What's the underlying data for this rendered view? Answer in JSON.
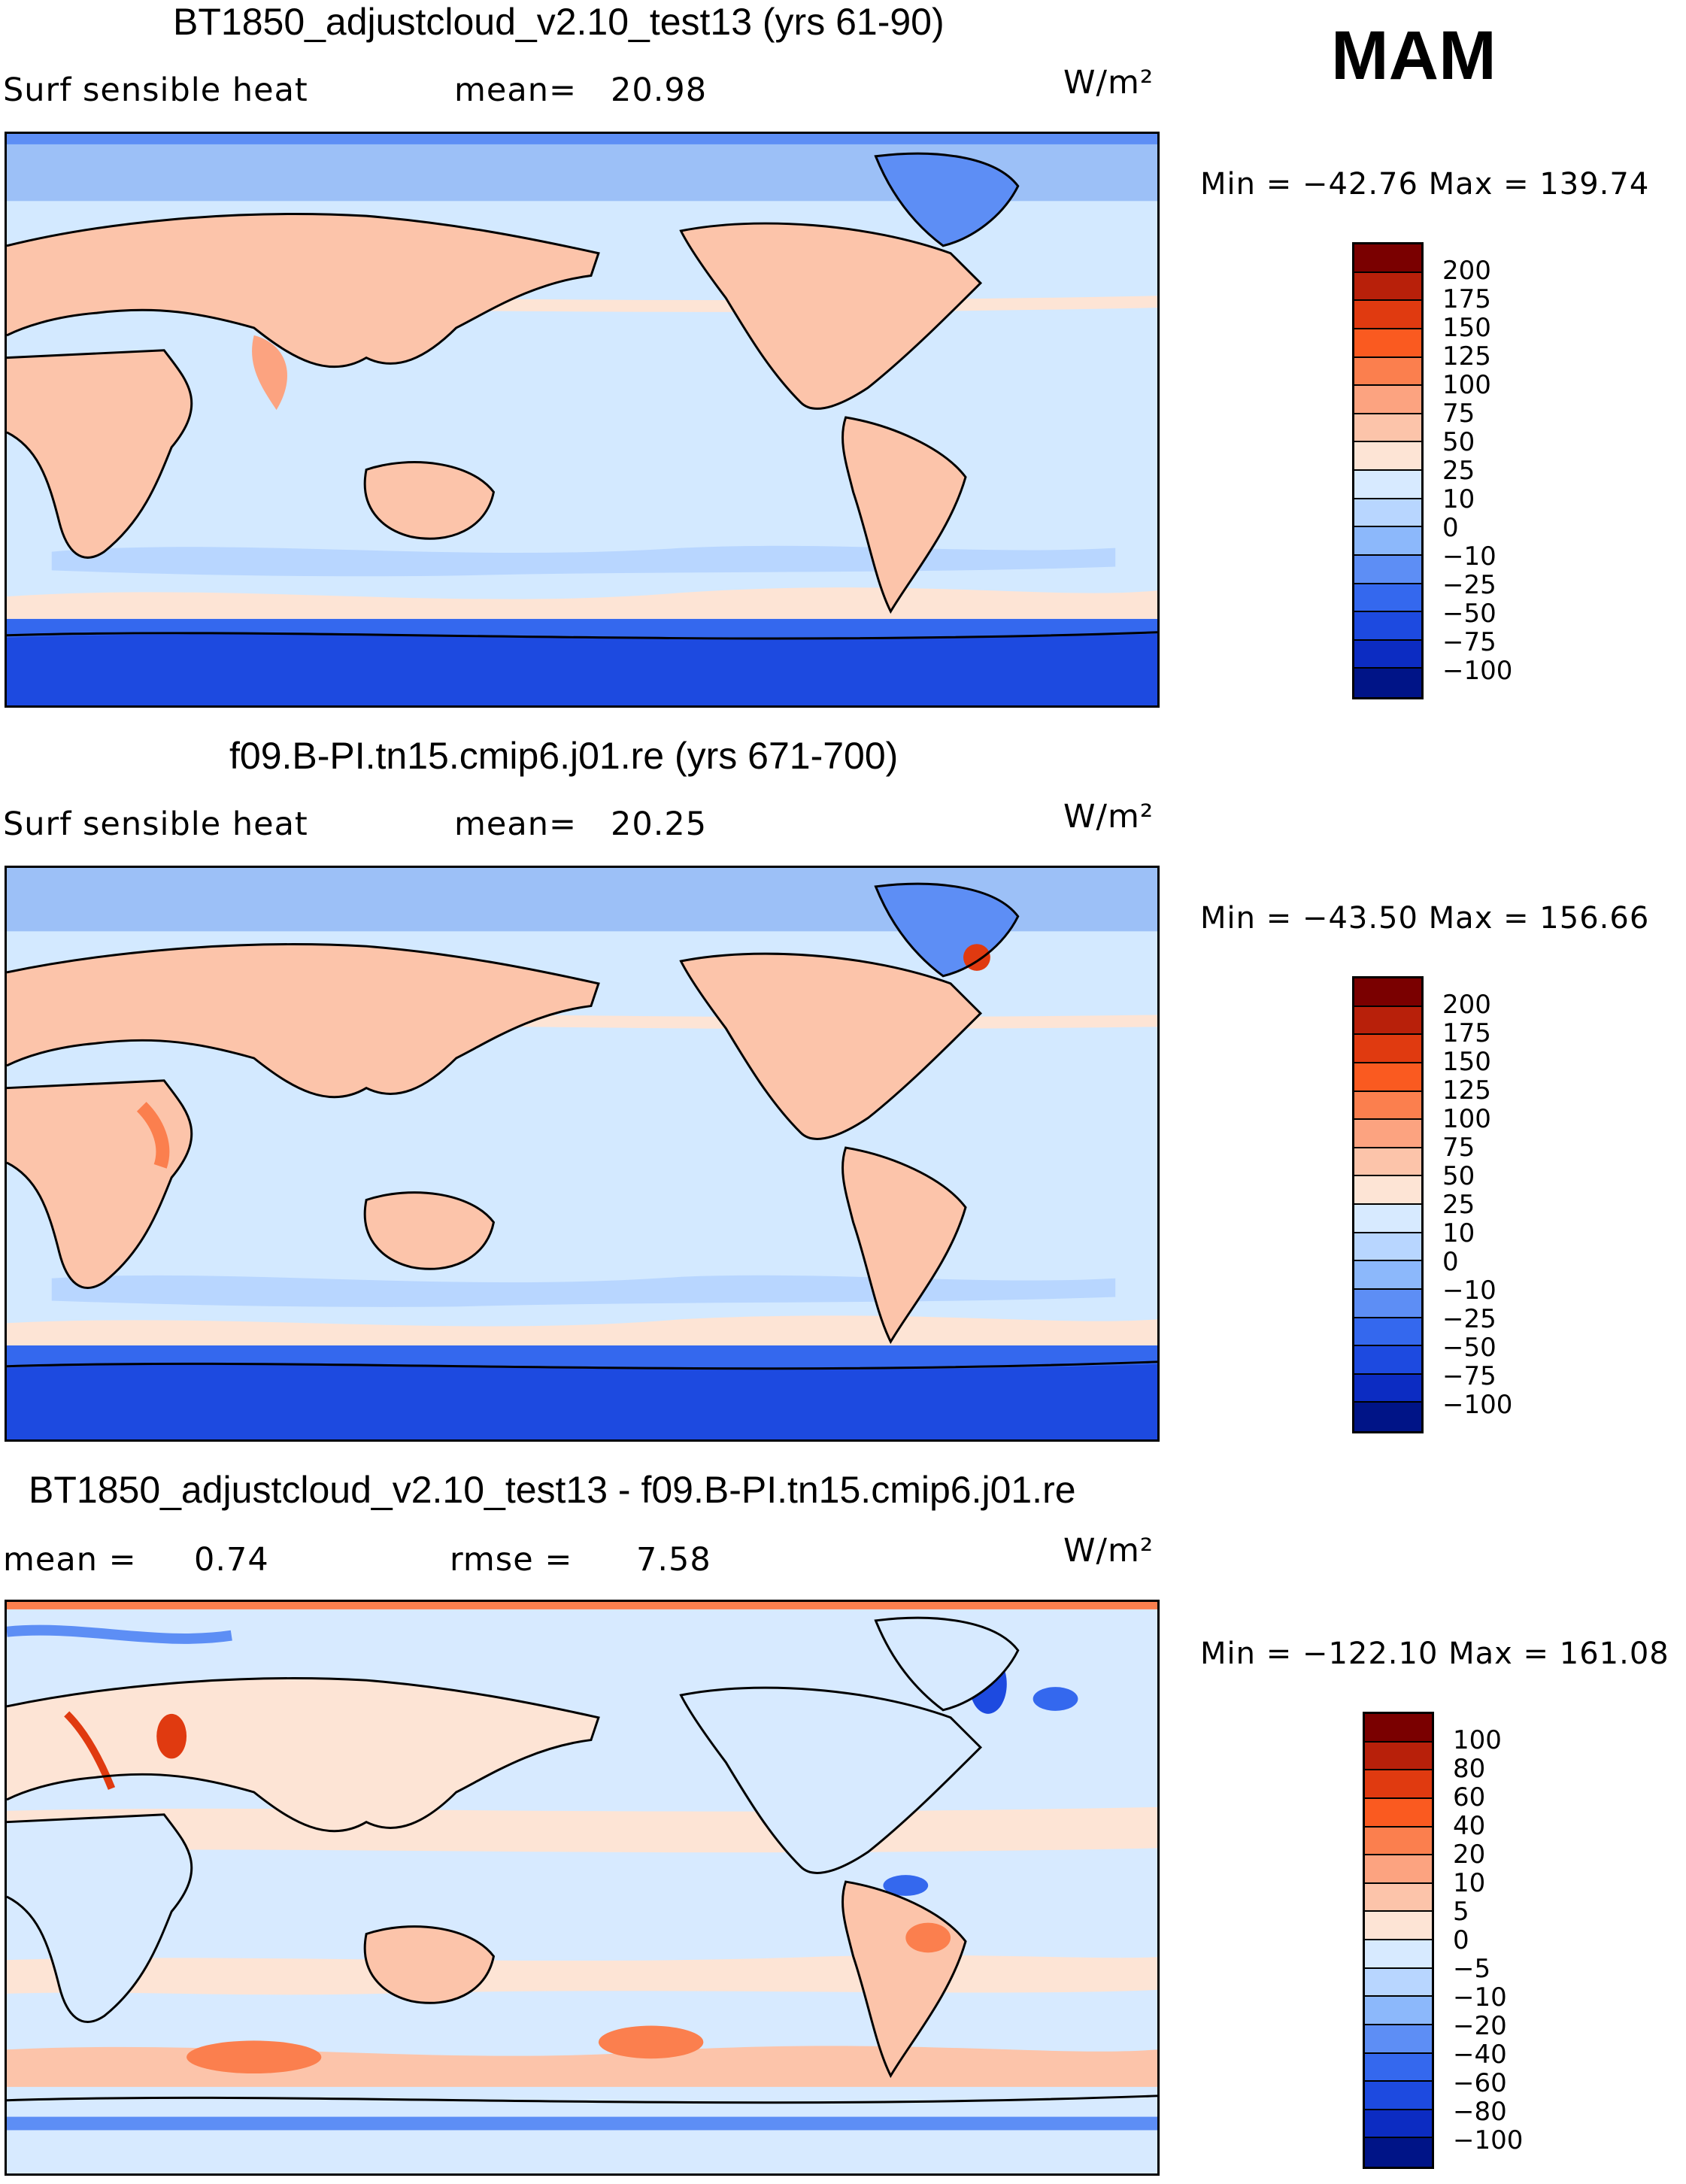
{
  "season": "MAM",
  "panels": [
    {
      "title": "BT1850_adjustcloud_v2.10_test13 (yrs 61-90)",
      "left_label": "Surf sensible heat",
      "mid_label": "mean=",
      "mid_value": "20.98",
      "units": "W/m²",
      "minmax": "Min = −42.76 Max = 139.74",
      "colorbar_labels": [
        "200",
        "175",
        "150",
        "125",
        "100",
        "75",
        "50",
        "25",
        "10",
        "0",
        "−10",
        "−25",
        "−50",
        "−75",
        "−100"
      ],
      "colorbar_colors": [
        "#7a0000",
        "#b8200a",
        "#e03a10",
        "#fa5a20",
        "#fb7f4e",
        "#fca380",
        "#fcc4aa",
        "#fde4d5",
        "#d7eaff",
        "#b8d6ff",
        "#8cb8fb",
        "#5d8ef5",
        "#3468ee",
        "#1d4ae0",
        "#0c2cc2",
        "#001487"
      ]
    },
    {
      "title": "f09.B-PI.tn15.cmip6.j01.re (yrs 671-700)",
      "left_label": "Surf sensible heat",
      "mid_label": "mean=",
      "mid_value": "20.25",
      "units": "W/m²",
      "minmax": "Min = −43.50 Max = 156.66",
      "colorbar_labels": [
        "200",
        "175",
        "150",
        "125",
        "100",
        "75",
        "50",
        "25",
        "10",
        "0",
        "−10",
        "−25",
        "−50",
        "−75",
        "−100"
      ],
      "colorbar_colors": [
        "#7a0000",
        "#b8200a",
        "#e03a10",
        "#fa5a20",
        "#fb7f4e",
        "#fca380",
        "#fcc4aa",
        "#fde4d5",
        "#d7eaff",
        "#b8d6ff",
        "#8cb8fb",
        "#5d8ef5",
        "#3468ee",
        "#1d4ae0",
        "#0c2cc2",
        "#001487"
      ]
    },
    {
      "title": "BT1850_adjustcloud_v2.10_test13 - f09.B-PI.tn15.cmip6.j01.re",
      "left_label": "mean =",
      "left_value": "0.74",
      "mid_label": "rmse =",
      "mid_value": "7.58",
      "units": "W/m²",
      "minmax": "Min = −122.10 Max = 161.08",
      "colorbar_labels": [
        "100",
        "80",
        "60",
        "40",
        "20",
        "10",
        "5",
        "0",
        "−5",
        "−10",
        "−20",
        "−40",
        "−60",
        "−80",
        "−100"
      ],
      "colorbar_colors": [
        "#7a0000",
        "#b8200a",
        "#e03a10",
        "#fa5a20",
        "#fb7f4e",
        "#fca380",
        "#fcc4aa",
        "#fde4d5",
        "#d7eaff",
        "#b8d6ff",
        "#8cb8fb",
        "#5d8ef5",
        "#3468ee",
        "#1d4ae0",
        "#0c2cc2",
        "#001487"
      ]
    }
  ]
}
